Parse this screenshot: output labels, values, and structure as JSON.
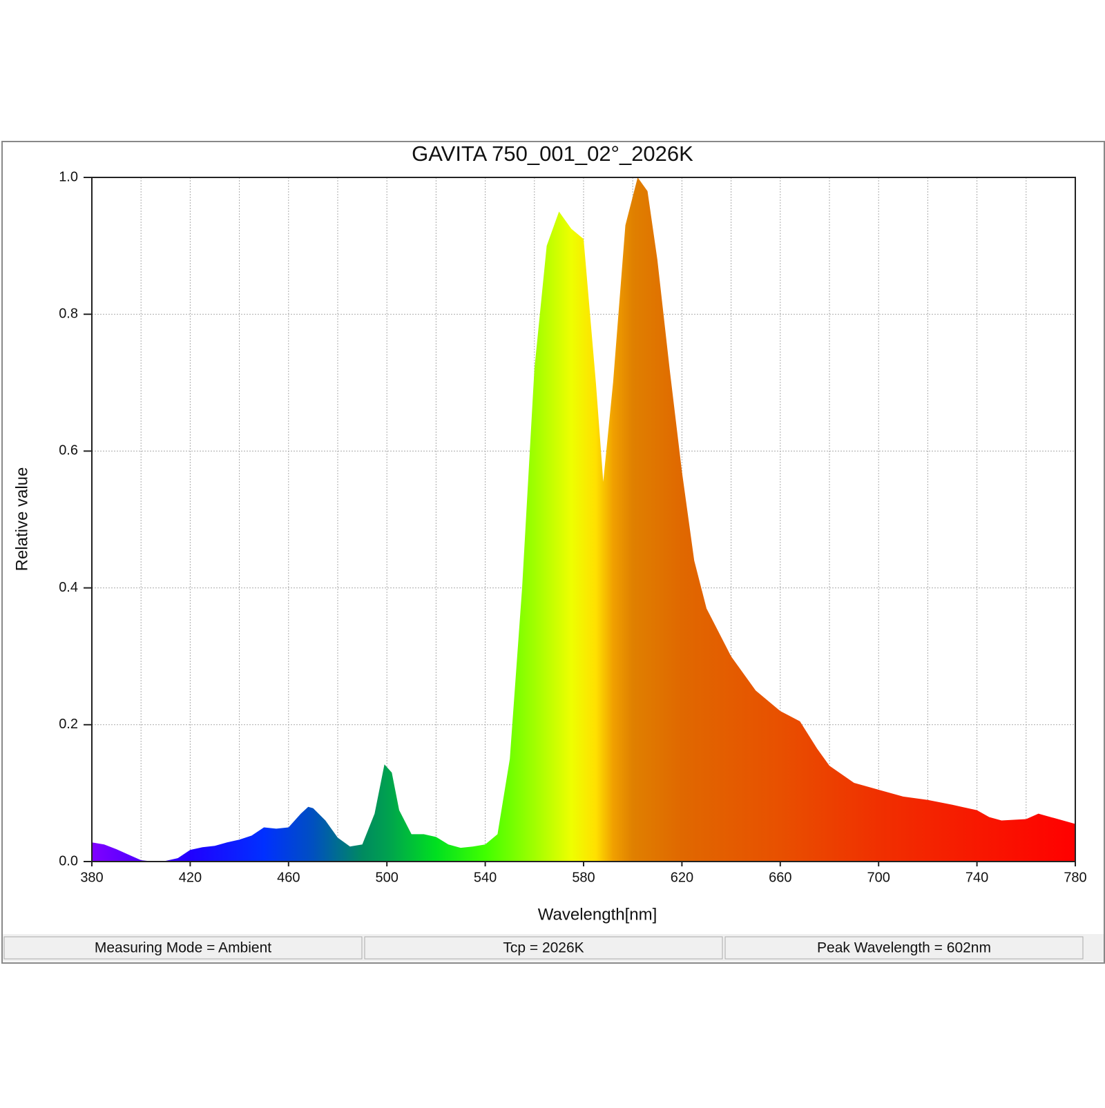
{
  "chart_data": {
    "type": "area",
    "title": "GAVITA 750_001_02°_2026K",
    "x_label": "Wavelength[nm]",
    "y_label": "Relative value",
    "x": [
      380,
      385,
      390,
      395,
      400,
      405,
      410,
      415,
      420,
      425,
      430,
      435,
      440,
      445,
      450,
      455,
      460,
      465,
      468,
      470,
      475,
      480,
      485,
      490,
      495,
      499,
      502,
      505,
      510,
      515,
      520,
      525,
      530,
      535,
      540,
      545,
      550,
      555,
      560,
      565,
      570,
      575,
      580,
      585,
      588,
      592,
      597,
      602,
      606,
      610,
      615,
      620,
      625,
      630,
      640,
      650,
      660,
      668,
      675,
      680,
      690,
      700,
      710,
      720,
      730,
      740,
      745,
      750,
      760,
      765,
      770,
      780
    ],
    "values": [
      0.028,
      0.025,
      0.018,
      0.01,
      0.002,
      0.0,
      0.001,
      0.005,
      0.017,
      0.021,
      0.023,
      0.028,
      0.032,
      0.038,
      0.05,
      0.048,
      0.05,
      0.07,
      0.08,
      0.078,
      0.06,
      0.035,
      0.022,
      0.025,
      0.07,
      0.142,
      0.13,
      0.075,
      0.04,
      0.04,
      0.036,
      0.025,
      0.02,
      0.022,
      0.025,
      0.04,
      0.15,
      0.4,
      0.72,
      0.9,
      0.95,
      0.925,
      0.91,
      0.7,
      0.555,
      0.7,
      0.93,
      1.0,
      0.98,
      0.88,
      0.72,
      0.57,
      0.44,
      0.37,
      0.3,
      0.25,
      0.22,
      0.205,
      0.165,
      0.14,
      0.115,
      0.105,
      0.095,
      0.09,
      0.083,
      0.075,
      0.065,
      0.06,
      0.062,
      0.07,
      0.065,
      0.055
    ],
    "fill_gradient": [
      {
        "x": 380,
        "color": "#8000ff"
      },
      {
        "x": 420,
        "color": "#2000ff"
      },
      {
        "x": 450,
        "color": "#0030ff"
      },
      {
        "x": 470,
        "color": "#0050c0"
      },
      {
        "x": 490,
        "color": "#008a60"
      },
      {
        "x": 500,
        "color": "#00a050"
      },
      {
        "x": 520,
        "color": "#00e020"
      },
      {
        "x": 540,
        "color": "#40ff00"
      },
      {
        "x": 560,
        "color": "#a0ff00"
      },
      {
        "x": 575,
        "color": "#eeff00"
      },
      {
        "x": 585,
        "color": "#ffe000"
      },
      {
        "x": 592,
        "color": "#f0a000"
      },
      {
        "x": 600,
        "color": "#e08000"
      },
      {
        "x": 620,
        "color": "#e06800"
      },
      {
        "x": 660,
        "color": "#e85000"
      },
      {
        "x": 700,
        "color": "#f03000"
      },
      {
        "x": 780,
        "color": "#ff0000"
      }
    ],
    "xlim": [
      380,
      780
    ],
    "xticks": [
      380,
      420,
      460,
      500,
      540,
      580,
      620,
      660,
      700,
      740,
      780
    ],
    "xgrid": [
      400,
      420,
      440,
      460,
      480,
      500,
      520,
      540,
      560,
      580,
      600,
      620,
      640,
      660,
      680,
      700,
      720,
      740,
      760
    ],
    "ylim": [
      0,
      1
    ],
    "yticks": [
      {
        "value": 0,
        "label": "0.0"
      },
      0.2,
      0.4,
      0.6,
      0.8,
      {
        "value": 1,
        "label": "1.0"
      }
    ],
    "grid": true
  },
  "status_bar": [
    "Measuring Mode = Ambient",
    "Tcp = 2026K",
    "Peak Wavelength = 602nm"
  ]
}
